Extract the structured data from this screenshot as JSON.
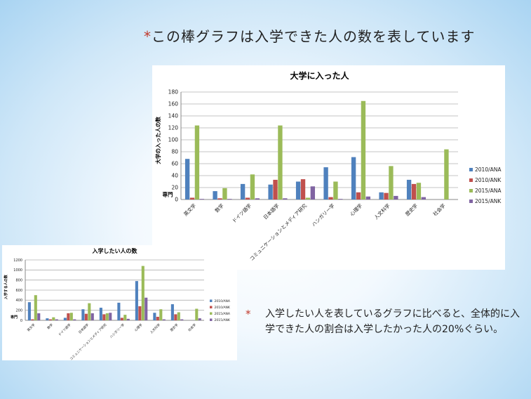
{
  "slide": {
    "title_star": "*",
    "title": "この棒グラフは入学できた人の数を表しています",
    "note_star": "*",
    "note": "入学したい人を表しているグラフに比べると、全体的に入学できた人の割合は入学したかった人の20%ぐらい。"
  },
  "colors": {
    "2010/ANA": "#4f81bd",
    "2010/ANK": "#c0504d",
    "2015/ANA": "#9bbb59",
    "2015/ANK": "#8064a2"
  },
  "chart_data": [
    {
      "type": "bar",
      "title": "大学に入った人",
      "ylabel": "大学の入った人の数",
      "xlabel": "専門",
      "ylim": [
        0,
        180
      ],
      "yticks": [
        0,
        20,
        40,
        60,
        80,
        100,
        120,
        140,
        160,
        180
      ],
      "grid": true,
      "legend_position": "right",
      "categories": [
        "英文学",
        "数学",
        "ドイツ語学",
        "日本語学",
        "コミュニケーションとメディア研究",
        "ハンガリー学",
        "心理学",
        "人文科学",
        "歴史学",
        "社会学"
      ],
      "series": [
        {
          "name": "2010/ANA",
          "values": [
            68,
            14,
            26,
            25,
            30,
            54,
            71,
            12,
            33,
            0
          ]
        },
        {
          "name": "2010/ANK",
          "values": [
            3,
            2,
            3,
            33,
            34,
            4,
            12,
            11,
            26,
            0
          ]
        },
        {
          "name": "2015/ANA",
          "values": [
            124,
            19,
            42,
            124,
            3,
            30,
            165,
            56,
            28,
            84
          ]
        },
        {
          "name": "2015/ANK",
          "values": [
            1,
            1,
            2,
            2,
            22,
            1,
            5,
            6,
            4,
            0
          ]
        }
      ]
    },
    {
      "type": "bar",
      "title": "入学したい人の数",
      "ylabel": "入学する人の数",
      "xlabel": "専門",
      "ylim": [
        0,
        1200
      ],
      "yticks": [
        0,
        200,
        400,
        600,
        800,
        1000,
        1200
      ],
      "grid": true,
      "legend_position": "right",
      "categories": [
        "英文学",
        "数学",
        "ドイツ語学",
        "日本語学",
        "コミュニケーションとメディア研究",
        "ハンガリー学",
        "心理学",
        "人文科学",
        "歴史学",
        "社会学"
      ],
      "series": [
        {
          "name": "2010/ANA",
          "values": [
            360,
            40,
            50,
            220,
            250,
            350,
            780,
            150,
            320,
            0
          ]
        },
        {
          "name": "2010/ANK",
          "values": [
            20,
            20,
            140,
            130,
            120,
            50,
            280,
            70,
            120,
            0
          ]
        },
        {
          "name": "2015/ANA",
          "values": [
            500,
            60,
            150,
            340,
            140,
            110,
            1080,
            220,
            160,
            230
          ]
        },
        {
          "name": "2015/ANK",
          "values": [
            140,
            20,
            20,
            140,
            150,
            30,
            450,
            20,
            20,
            40
          ]
        }
      ]
    }
  ]
}
